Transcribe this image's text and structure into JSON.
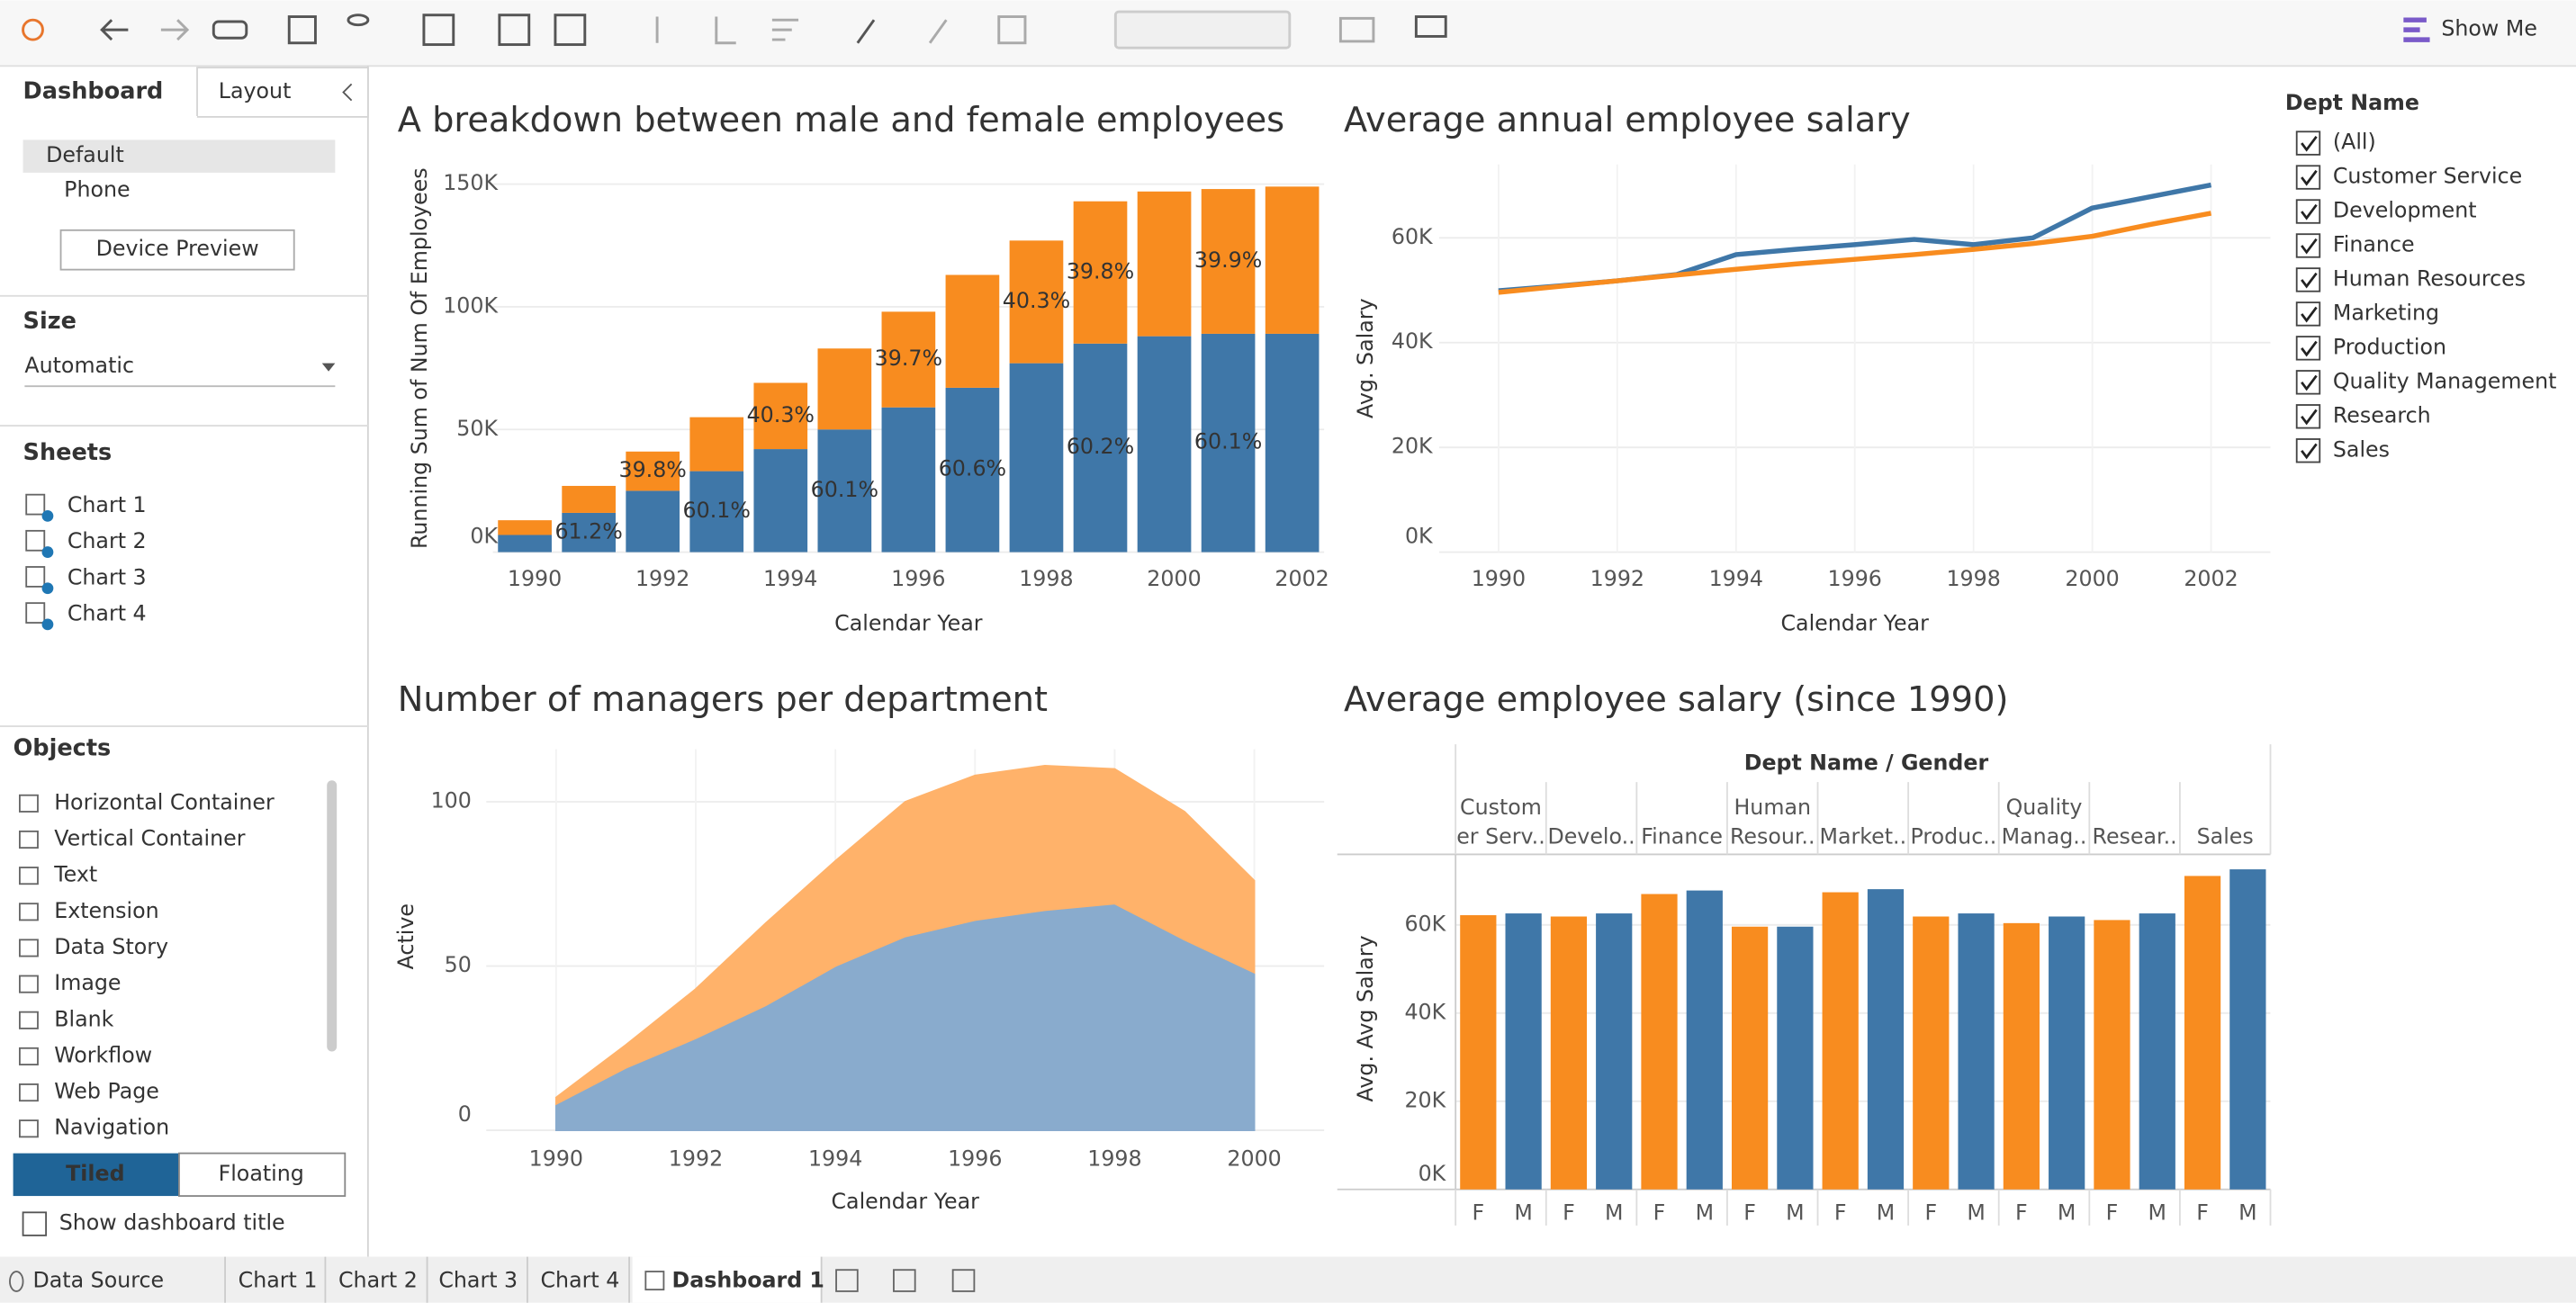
{
  "ui": {
    "show_me": "Show Me",
    "tabs": [
      "Dashboard",
      "Layout"
    ],
    "devices": [
      "Default",
      "Phone"
    ],
    "device_preview": "Device Preview",
    "size_title": "Size",
    "size_value": "Automatic",
    "sheets_title": "Sheets",
    "sheets": [
      "Chart 1",
      "Chart 2",
      "Chart 3",
      "Chart 4"
    ],
    "objects_title": "Objects",
    "objects": [
      "Horizontal Container",
      "Vertical Container",
      "Text",
      "Extension",
      "Data Story",
      "Image",
      "Blank",
      "Workflow",
      "Web Page",
      "Navigation"
    ],
    "layout_modes": [
      "Tiled",
      "Floating"
    ],
    "show_title": "Show dashboard title",
    "bottom_tabs": [
      "Data Source",
      "Chart 1",
      "Chart 2",
      "Chart 3",
      "Chart 4",
      "Dashboard 1"
    ]
  },
  "filter": {
    "title": "Dept Name",
    "items": [
      "(All)",
      "Customer Service",
      "Development",
      "Finance",
      "Human Resources",
      "Marketing",
      "Production",
      "Quality Management",
      "Research",
      "Sales"
    ]
  },
  "chart_data": [
    {
      "type": "bar",
      "stacked": true,
      "title": "A breakdown between male and female employees",
      "xlabel": "Calendar Year",
      "ylabel": "Running Sum of Num Of Employees",
      "categories": [
        1990,
        null,
        1992,
        null,
        1994,
        null,
        1996,
        null,
        1998,
        null,
        2000,
        null,
        2002
      ],
      "series": [
        {
          "color": "#3f77a8",
          "values": [
            7000,
            16000,
            25000,
            33000,
            42000,
            50000,
            59000,
            67000,
            77000,
            85000,
            88000,
            89000,
            89000
          ],
          "percent_labels": [
            null,
            "61.2%",
            null,
            "60.1%",
            null,
            "60.1%",
            null,
            "60.6%",
            null,
            "60.2%",
            null,
            "60.1%",
            null
          ]
        },
        {
          "color": "#f88c1f",
          "values": [
            6000,
            11000,
            16000,
            22000,
            27000,
            33000,
            39000,
            46000,
            50000,
            58000,
            59000,
            59000,
            60000
          ],
          "percent_labels": [
            null,
            null,
            "39.8%",
            null,
            "40.3%",
            null,
            "39.7%",
            null,
            "40.3%",
            "39.8%",
            null,
            "39.9%",
            null
          ]
        }
      ],
      "ylim": [
        0,
        158000
      ],
      "yticks": [
        {
          "value": 0,
          "label": "0K"
        },
        {
          "value": 50000,
          "label": "50K"
        },
        {
          "value": 100000,
          "label": "100K"
        },
        {
          "value": 150000,
          "label": "150K"
        }
      ],
      "grid": true
    },
    {
      "type": "line",
      "title": "Average annual employee salary",
      "xlabel": "Calendar Year",
      "ylabel": "Avg. Salary",
      "x": [
        1990,
        1991,
        1992,
        1993,
        1994,
        1995,
        1996,
        1997,
        1998,
        1999,
        2000,
        2001,
        2002
      ],
      "series": [
        {
          "color": "#3f77a8",
          "values": [
            49900,
            50800,
            51800,
            53000,
            56800,
            57800,
            58700,
            59700,
            58700,
            60000,
            65700,
            67900,
            70100
          ]
        },
        {
          "color": "#f88c1f",
          "values": [
            49600,
            50700,
            51800,
            52900,
            54000,
            55000,
            55900,
            56800,
            57800,
            58900,
            60300,
            62600,
            64700
          ]
        }
      ],
      "xlim": [
        1989,
        2003
      ],
      "xticks": [
        1990,
        1992,
        1994,
        1996,
        1998,
        2000,
        2002
      ],
      "ylim": [
        0,
        74000
      ],
      "yticks": [
        {
          "value": 0,
          "label": "0K"
        },
        {
          "value": 20000,
          "label": "20K"
        },
        {
          "value": 40000,
          "label": "40K"
        },
        {
          "value": 60000,
          "label": "60K"
        }
      ],
      "grid": true
    },
    {
      "type": "area",
      "stacked": true,
      "title": "Number of managers per department",
      "xlabel": "Calendar Year",
      "ylabel": "Active",
      "x": [
        1990,
        1991,
        1992,
        1993,
        1994,
        1995,
        1996,
        1997,
        1998,
        1999,
        2000
      ],
      "series": [
        {
          "color": "#89abcd",
          "values": [
            8,
            19,
            28,
            38,
            50,
            59,
            64,
            67,
            69,
            58,
            48
          ]
        },
        {
          "color": "#ffb26a",
          "values": [
            2,
            7,
            15,
            25,
            32,
            41,
            44,
            44,
            41,
            39,
            28
          ]
        }
      ],
      "xlim": [
        1989,
        2001
      ],
      "xticks": [
        1990,
        1992,
        1994,
        1996,
        1998,
        2000
      ],
      "ylim": [
        0,
        116
      ],
      "yticks": [
        0,
        50,
        100
      ],
      "grid": true
    },
    {
      "type": "bar",
      "stacked": false,
      "title": "Average employee salary (since 1990)",
      "header": "Dept Name / Gender",
      "ylabel": "Avg. Avg Salary",
      "categories": [
        [
          "Custom",
          "er Serv.."
        ],
        [
          "Develo.."
        ],
        [
          "Finance"
        ],
        [
          "Human",
          "Resour.."
        ],
        [
          "Market.."
        ],
        [
          "Produc.."
        ],
        [
          "Quality",
          "Manag.."
        ],
        [
          "Resear.."
        ],
        [
          "Sales"
        ]
      ],
      "series": [
        {
          "name": "F",
          "color": "#f88c1f",
          "values": [
            62200,
            61900,
            67000,
            59600,
            67400,
            61900,
            60400,
            61100,
            71100
          ]
        },
        {
          "name": "M",
          "color": "#3f77a8",
          "values": [
            62600,
            62600,
            67800,
            59600,
            68100,
            62600,
            61900,
            62600,
            72600
          ]
        }
      ],
      "ylim": [
        0,
        76000
      ],
      "yticks": [
        {
          "value": 0,
          "label": "0K"
        },
        {
          "value": 20000,
          "label": "20K"
        },
        {
          "value": 40000,
          "label": "40K"
        },
        {
          "value": 60000,
          "label": "60K"
        }
      ],
      "grid": true
    }
  ]
}
